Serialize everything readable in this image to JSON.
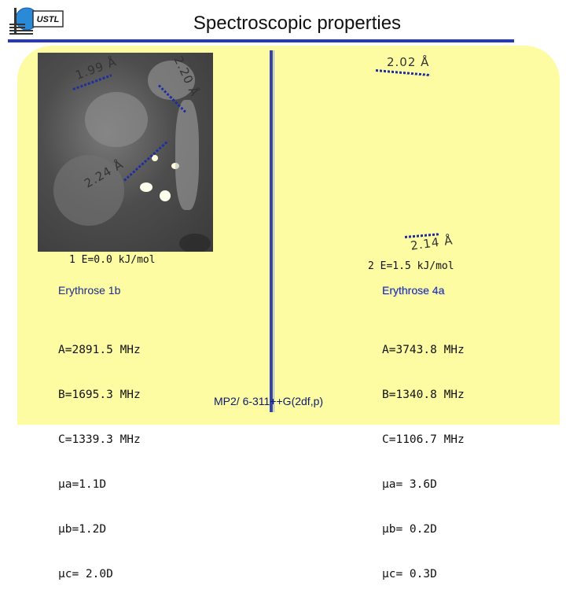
{
  "header": {
    "title": "Spectroscopic properties",
    "logo_text": "USTL"
  },
  "molecule_1": {
    "energy_label": "1 E=0.0 kJ/mol",
    "name": "Erythrose 1b",
    "params": [
      "A=2891.5 MHz",
      "B=1695.3 MHz",
      "C=1339.3 MHz",
      "µa=1.1D",
      "µb=1.2D",
      "µc= 2.0D"
    ],
    "distances": [
      "1.99 Å",
      "2.20 Å",
      "2.24 Å"
    ]
  },
  "molecule_2": {
    "energy_label": "2 E=1.5 kJ/mol",
    "name": "Erythrose 4a",
    "params": [
      "A=3743.8 MHz",
      "B=1340.8 MHz",
      "C=1106.7 MHz",
      "µa= 3.6D",
      "µb= 0.2D",
      "µc= 0.3D"
    ],
    "distances": [
      "2.02 Å",
      "2.14 Å"
    ]
  },
  "method": "MP2/ 6-311++G(2df,p)",
  "colors": {
    "panel": "#fdfca2",
    "accent": "#2b3aa8",
    "label": "#1a2a8a"
  }
}
